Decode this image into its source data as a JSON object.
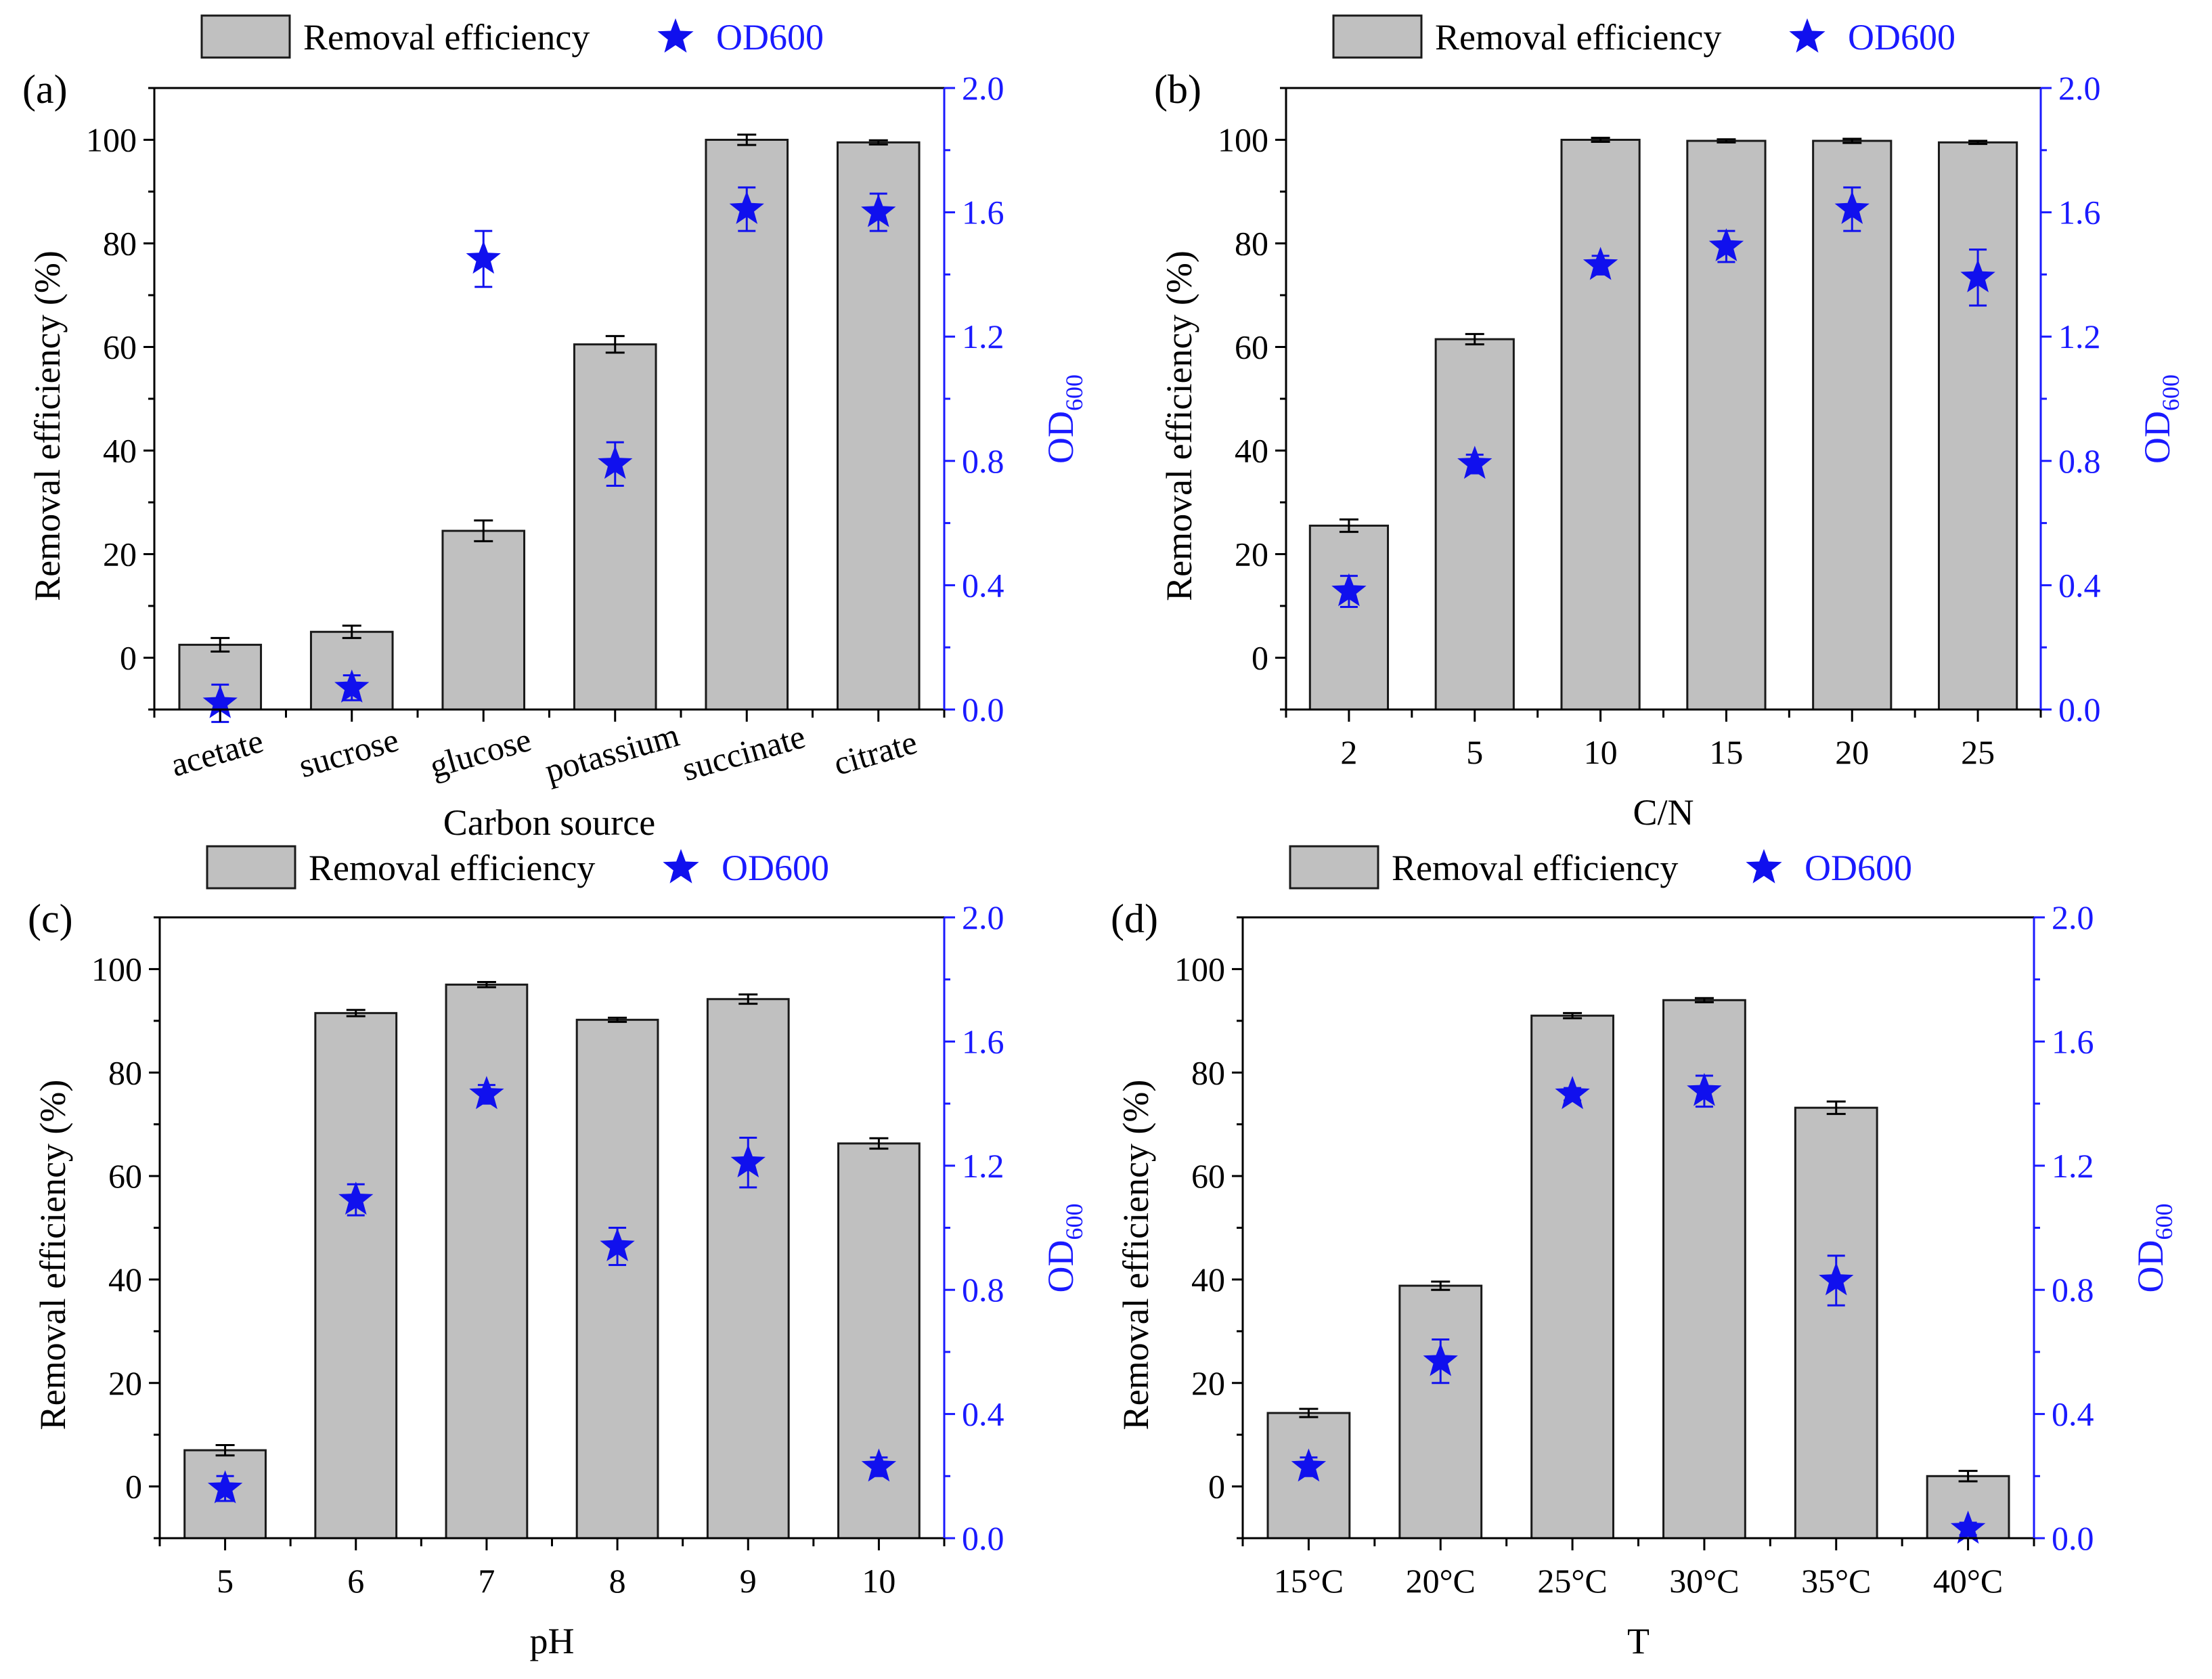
{
  "legend": {
    "bar_label": "Removal efficiency",
    "star_label": "OD600"
  },
  "colors": {
    "bar_fill": "#c0c0c0",
    "bar_stroke": "#1a1a1a",
    "star": "#1010ee",
    "right_axis": "#1a1aff",
    "axis": "#000000"
  },
  "chart_data": [
    {
      "type": "bar",
      "panel_label": "(a)",
      "xlabel": "Carbon source",
      "ylabel": "Removal efficiency (%)",
      "y2label_main": "OD",
      "y2label_sub": "600",
      "ylim": [
        -10,
        110
      ],
      "yticks": [
        0,
        20,
        40,
        60,
        80,
        100
      ],
      "y2lim": [
        0.0,
        2.0
      ],
      "y2ticks": [
        0.0,
        0.4,
        0.8,
        1.2,
        1.6,
        2.0
      ],
      "y2tick_labels": [
        "0.0",
        "0.4",
        "0.8",
        "1.2",
        "1.6",
        "2.0"
      ],
      "rotate_x_labels": true,
      "categories": [
        "acetate",
        "sucrose",
        "glucose",
        "potassium",
        "succinate",
        "citrate"
      ],
      "series": [
        {
          "name": "Removal efficiency",
          "axis": "left",
          "values": [
            2.5,
            5.0,
            24.5,
            60.5,
            100.0,
            99.5
          ],
          "errors": [
            1.3,
            1.2,
            2.0,
            1.6,
            1.0,
            0.4
          ]
        },
        {
          "name": "OD600",
          "axis": "right",
          "values": [
            0.02,
            0.07,
            1.45,
            0.79,
            1.61,
            1.6
          ],
          "errors": [
            0.06,
            0.04,
            0.09,
            0.07,
            0.07,
            0.06
          ]
        }
      ]
    },
    {
      "type": "bar",
      "panel_label": "(b)",
      "xlabel": "C/N",
      "ylabel": "Removal efficiency (%)",
      "y2label_main": "OD",
      "y2label_sub": "600",
      "ylim": [
        -10,
        110
      ],
      "yticks": [
        0,
        20,
        40,
        60,
        80,
        100
      ],
      "y2lim": [
        0.0,
        2.0
      ],
      "y2ticks": [
        0.0,
        0.4,
        0.8,
        1.2,
        1.6,
        2.0
      ],
      "y2tick_labels": [
        "0.0",
        "0.4",
        "0.8",
        "1.2",
        "1.6",
        "2.0"
      ],
      "rotate_x_labels": false,
      "categories": [
        "2",
        "5",
        "10",
        "15",
        "20",
        "25"
      ],
      "series": [
        {
          "name": "Removal efficiency",
          "axis": "left",
          "values": [
            25.5,
            61.5,
            100.0,
            99.8,
            99.8,
            99.5
          ],
          "errors": [
            1.2,
            1.0,
            0.4,
            0.3,
            0.4,
            0.3
          ]
        },
        {
          "name": "OD600",
          "axis": "right",
          "values": [
            0.38,
            0.79,
            1.43,
            1.49,
            1.61,
            1.39
          ],
          "errors": [
            0.05,
            0.03,
            0.03,
            0.05,
            0.07,
            0.09
          ]
        }
      ]
    },
    {
      "type": "bar",
      "panel_label": "(c)",
      "xlabel": "pH",
      "ylabel": "Removal efficiency (%)",
      "y2label_main": "OD",
      "y2label_sub": "600",
      "ylim": [
        -10,
        110
      ],
      "yticks": [
        0,
        20,
        40,
        60,
        80,
        100
      ],
      "y2lim": [
        0.0,
        2.0
      ],
      "y2ticks": [
        0.0,
        0.4,
        0.8,
        1.2,
        1.6,
        2.0
      ],
      "y2tick_labels": [
        "0.0",
        "0.4",
        "0.8",
        "1.2",
        "1.6",
        "2.0"
      ],
      "rotate_x_labels": false,
      "categories": [
        "5",
        "6",
        "7",
        "8",
        "9",
        "10"
      ],
      "series": [
        {
          "name": "Removal efficiency",
          "axis": "left",
          "values": [
            7.0,
            91.5,
            97.0,
            90.2,
            94.2,
            66.3
          ],
          "errors": [
            1.0,
            0.6,
            0.5,
            0.4,
            0.9,
            1.0
          ]
        },
        {
          "name": "OD600",
          "axis": "right",
          "values": [
            0.16,
            1.09,
            1.43,
            0.94,
            1.21,
            0.23
          ],
          "errors": [
            0.04,
            0.05,
            0.03,
            0.06,
            0.08,
            0.03
          ]
        }
      ]
    },
    {
      "type": "bar",
      "panel_label": "(d)",
      "xlabel": "T",
      "ylabel": "Removal efficiency (%)",
      "y2label_main": "OD",
      "y2label_sub": "600",
      "ylim": [
        -10,
        110
      ],
      "yticks": [
        0,
        20,
        40,
        60,
        80,
        100
      ],
      "y2lim": [
        0.0,
        2.0
      ],
      "y2ticks": [
        0.0,
        0.4,
        0.8,
        1.2,
        1.6,
        2.0
      ],
      "y2tick_labels": [
        "0.0",
        "0.4",
        "0.8",
        "1.2",
        "1.6",
        "2.0"
      ],
      "rotate_x_labels": false,
      "categories": [
        "15°C",
        "20°C",
        "25°C",
        "30°C",
        "35°C",
        "40°C"
      ],
      "series": [
        {
          "name": "Removal efficiency",
          "axis": "left",
          "values": [
            14.2,
            38.8,
            91.0,
            94.0,
            73.2,
            2.0
          ],
          "errors": [
            0.8,
            0.8,
            0.5,
            0.4,
            1.2,
            1.0
          ]
        },
        {
          "name": "OD600",
          "axis": "right",
          "values": [
            0.23,
            0.57,
            1.43,
            1.44,
            0.83,
            0.03
          ],
          "errors": [
            0.03,
            0.07,
            0.02,
            0.05,
            0.08,
            0.02
          ]
        }
      ]
    }
  ]
}
